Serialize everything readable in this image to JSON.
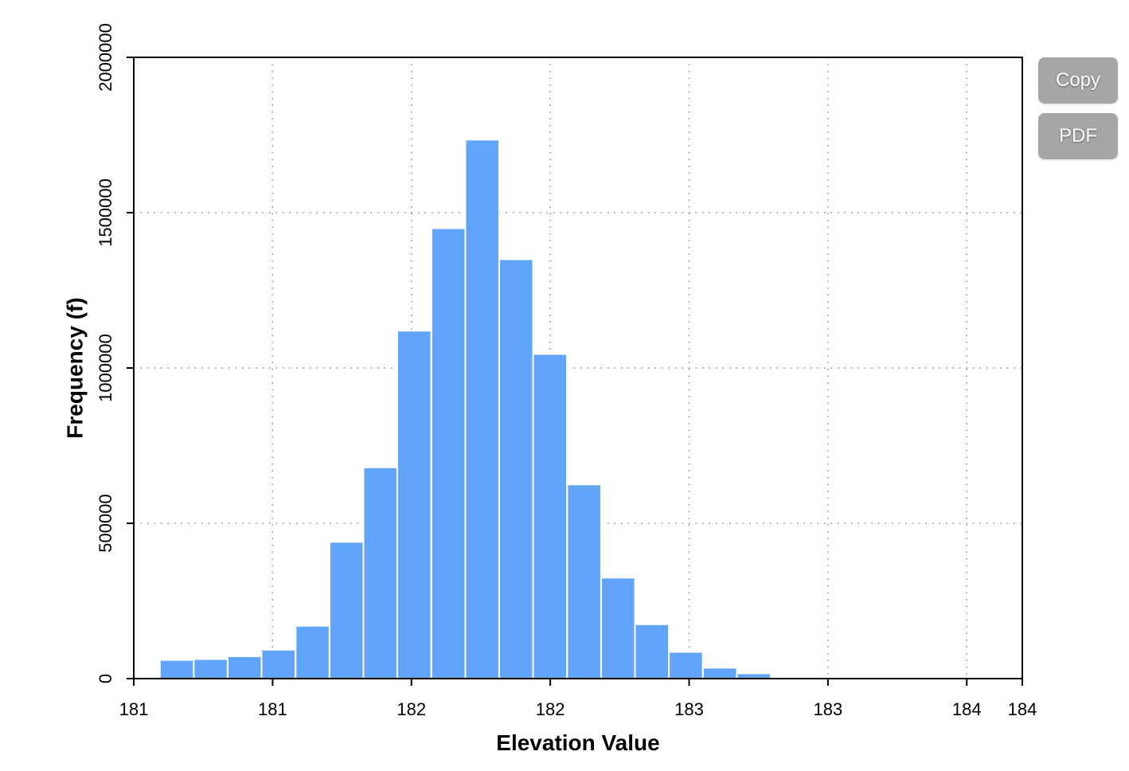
{
  "toolbar": {
    "copy_label": "Copy",
    "pdf_label": "PDF"
  },
  "colors": {
    "bar": "#60a5fa",
    "bar_edge": "#ffffff",
    "button_bg": "#a6a6a6",
    "grid": "#888888"
  },
  "chart_data": {
    "type": "bar",
    "title": "",
    "xlabel": "Elevation Value",
    "ylabel": "Frequency (f)",
    "xlim": [
      180.8,
      184.0
    ],
    "ylim": [
      0,
      2000000
    ],
    "grid": true,
    "x_ticks": [
      180.8,
      181.3,
      181.8,
      182.3,
      182.8,
      183.3,
      183.8,
      184.0
    ],
    "x_tick_labels": [
      "181",
      "181",
      "182",
      "182",
      "183",
      "183",
      "184",
      "184"
    ],
    "y_ticks": [
      0,
      500000,
      1000000,
      1500000,
      2000000
    ],
    "y_tick_labels": [
      "0",
      "500000",
      "1000000",
      "1500000",
      "2000000"
    ],
    "bin_width": 0.1222,
    "bins_start": [
      180.894,
      181.016,
      181.138,
      181.26,
      181.383,
      181.505,
      181.627,
      181.749,
      181.872,
      181.994,
      182.116,
      182.238,
      182.361,
      182.483,
      182.605,
      182.727,
      182.85,
      182.972,
      183.094
    ],
    "values": [
      60000,
      63000,
      72000,
      93000,
      170000,
      440000,
      680000,
      1120000,
      1450000,
      1735000,
      1350000,
      1045000,
      625000,
      325000,
      175000,
      86000,
      35000,
      17000,
      3000
    ]
  }
}
